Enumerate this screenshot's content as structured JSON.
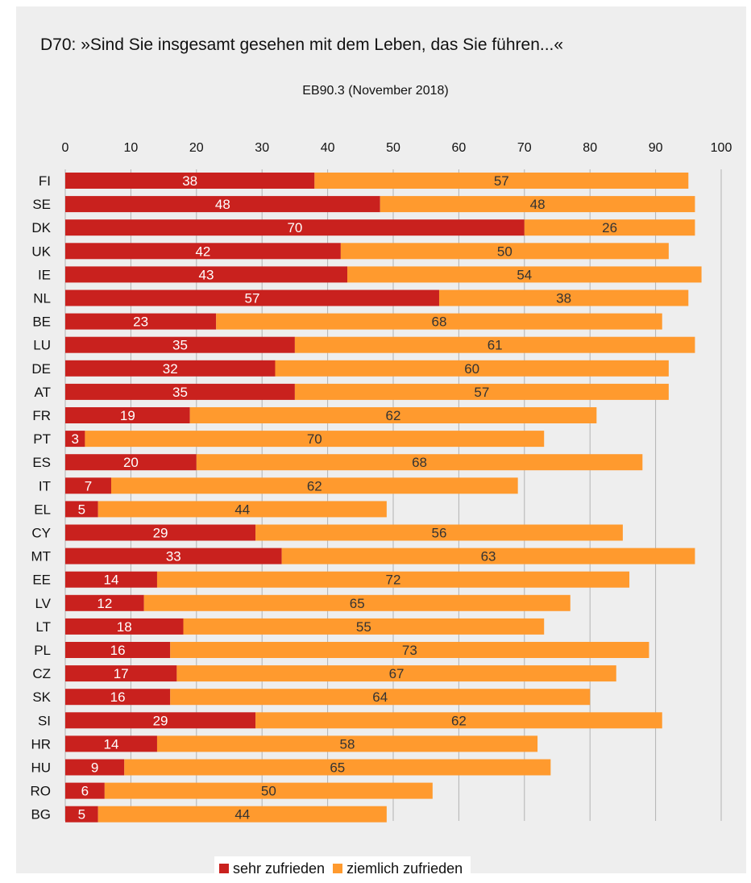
{
  "chart_data": {
    "type": "bar",
    "orientation": "horizontal",
    "stacked": true,
    "title": "D70: »Sind Sie insgesamt gesehen mit dem Leben, das Sie führen...«",
    "subtitle": "EB90.3 (November 2018)",
    "xlim": [
      0,
      100
    ],
    "xticks": [
      0,
      10,
      20,
      30,
      40,
      50,
      60,
      70,
      80,
      90,
      100
    ],
    "grid": true,
    "legend_position": "bottom",
    "categories": [
      "FI",
      "SE",
      "DK",
      "UK",
      "IE",
      "NL",
      "BE",
      "LU",
      "DE",
      "AT",
      "FR",
      "PT",
      "ES",
      "IT",
      "EL",
      "CY",
      "MT",
      "EE",
      "LV",
      "LT",
      "PL",
      "CZ",
      "SK",
      "SI",
      "HR",
      "HU",
      "RO",
      "BG"
    ],
    "series": [
      {
        "name": "sehr zufrieden",
        "color": "#c9211e",
        "values": [
          38,
          48,
          70,
          42,
          43,
          57,
          23,
          35,
          32,
          35,
          19,
          3,
          20,
          7,
          5,
          29,
          33,
          14,
          12,
          18,
          16,
          17,
          16,
          29,
          14,
          9,
          6,
          5
        ]
      },
      {
        "name": "ziemlich zufrieden",
        "color": "#ff9a2e",
        "values": [
          57,
          48,
          26,
          50,
          54,
          38,
          68,
          61,
          60,
          57,
          62,
          70,
          68,
          62,
          44,
          56,
          63,
          72,
          65,
          55,
          73,
          67,
          64,
          62,
          58,
          65,
          50,
          44
        ]
      }
    ]
  }
}
